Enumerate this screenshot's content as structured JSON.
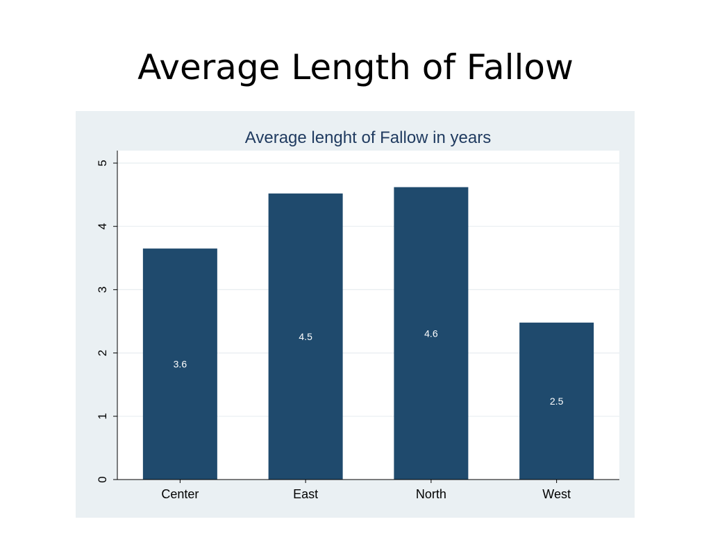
{
  "slide": {
    "title": "Average Length of Fallow"
  },
  "chart_data": {
    "type": "bar",
    "title": "Average lenght of Fallow in  years",
    "xlabel": "",
    "ylabel": "",
    "categories": [
      "Center",
      "East",
      "North",
      "West"
    ],
    "values": [
      3.65,
      4.52,
      4.62,
      2.48
    ],
    "data_labels": [
      "3.6",
      "4.5",
      "4.6",
      "2.5"
    ],
    "ylim": [
      0,
      5.2
    ],
    "yticks": [
      "0",
      "1",
      "2",
      "3",
      "4",
      "5"
    ],
    "grid": true,
    "legend": "none",
    "colors": {
      "bar": "#1f4a6d",
      "plot_background": "#ffffff",
      "frame_background": "#eaf0f3",
      "title_color": "#1f3a5f",
      "grid": "#e8edf0"
    }
  }
}
